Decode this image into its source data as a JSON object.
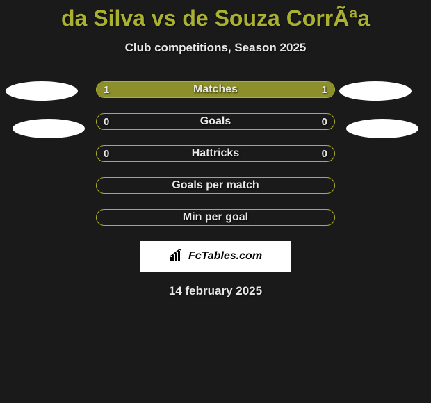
{
  "title": "da Silva vs de Souza CorrÃªa",
  "subtitle": "Club competitions, Season 2025",
  "background_color": "#1a1a1a",
  "accent_color": "#aab030",
  "fill_color": "#8d8f2a",
  "text_color": "#e8e8e8",
  "rows": [
    {
      "label": "Matches",
      "left_value": "1",
      "right_value": "1",
      "left_fill_pct": 50,
      "right_fill_pct": 50
    },
    {
      "label": "Goals",
      "left_value": "0",
      "right_value": "0",
      "left_fill_pct": 0,
      "right_fill_pct": 0
    },
    {
      "label": "Hattricks",
      "left_value": "0",
      "right_value": "0",
      "left_fill_pct": 0,
      "right_fill_pct": 0
    },
    {
      "label": "Goals per match",
      "left_value": "",
      "right_value": "",
      "left_fill_pct": 0,
      "right_fill_pct": 0
    },
    {
      "label": "Min per goal",
      "left_value": "",
      "right_value": "",
      "left_fill_pct": 0,
      "right_fill_pct": 0
    }
  ],
  "logo_text": "FcTables.com",
  "date": "14 february 2025",
  "ellipses": {
    "left1": true,
    "right1": true,
    "left2": true,
    "right2": true
  }
}
